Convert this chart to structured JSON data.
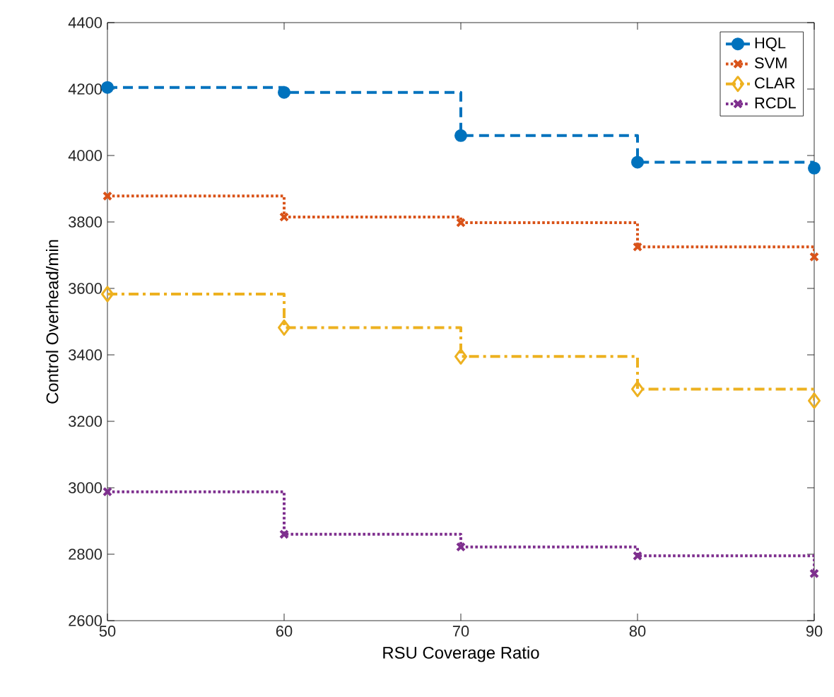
{
  "chart_data": {
    "type": "step",
    "xlabel": "RSU Coverage Ratio",
    "ylabel": "Control Overhead/min",
    "x": [
      50,
      60,
      70,
      80,
      90
    ],
    "series": [
      {
        "name": "HQL",
        "color": "#0072bd",
        "marker": "circle",
        "line_style": "dashed",
        "values": [
          4205,
          4190,
          4060,
          3980,
          3962
        ]
      },
      {
        "name": "SVM",
        "color": "#d95319",
        "marker": "cross",
        "line_style": "dotted",
        "values": [
          3878,
          3815,
          3798,
          3725,
          3695
        ]
      },
      {
        "name": "CLAR",
        "color": "#edb120",
        "marker": "diamond",
        "line_style": "dashdot",
        "values": [
          3583,
          3482,
          3395,
          3297,
          3262
        ]
      },
      {
        "name": "RCDL",
        "color": "#7e2f8e",
        "marker": "cross",
        "line_style": "dotted",
        "values": [
          2988,
          2860,
          2822,
          2795,
          2742
        ]
      }
    ],
    "xlim": [
      50,
      90
    ],
    "ylim": [
      2600,
      4400
    ],
    "xticks": [
      50,
      60,
      70,
      80,
      90
    ],
    "yticks": [
      2600,
      2800,
      3000,
      3200,
      3400,
      3600,
      3800,
      4000,
      4200,
      4400
    ],
    "grid": false,
    "legend": "top right"
  }
}
